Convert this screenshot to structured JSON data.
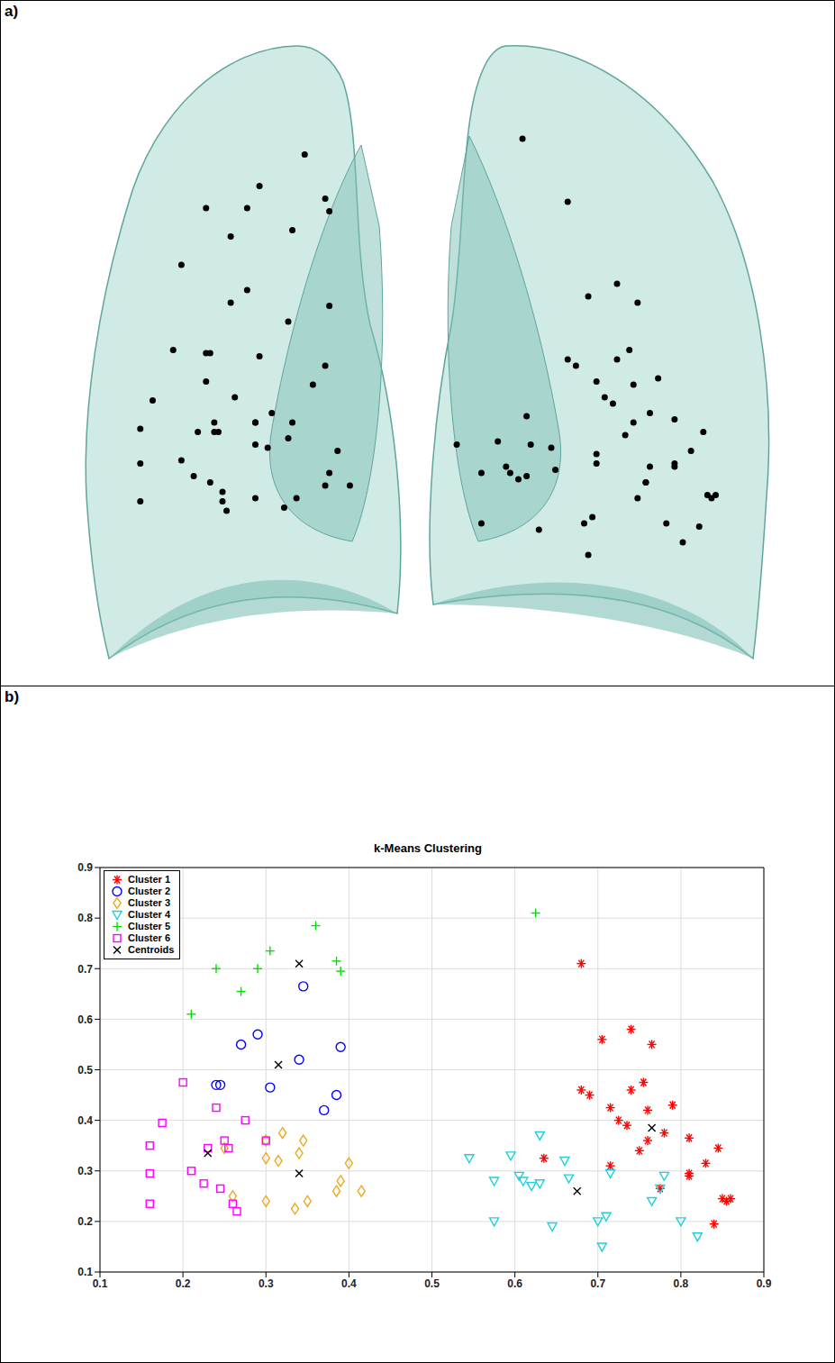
{
  "panel_labels": [
    "a)",
    "b)"
  ],
  "chart_data": {
    "type": "scatter",
    "title": "k-Means Clustering",
    "xlim": [
      0.1,
      0.9
    ],
    "ylim": [
      0.1,
      0.9
    ],
    "xticks": [
      0.1,
      0.2,
      0.3,
      0.4,
      0.5,
      0.6,
      0.7,
      0.8,
      0.9
    ],
    "yticks": [
      0.1,
      0.2,
      0.3,
      0.4,
      0.5,
      0.6,
      0.7,
      0.8,
      0.9
    ],
    "grid": true,
    "legend": "upper left",
    "series": [
      {
        "name": "Cluster 1",
        "color": "#ff0000",
        "marker": "star",
        "x": [
          0.68,
          0.68,
          0.69,
          0.705,
          0.715,
          0.715,
          0.725,
          0.735,
          0.74,
          0.74,
          0.75,
          0.755,
          0.76,
          0.76,
          0.765,
          0.78,
          0.79,
          0.775,
          0.81,
          0.81,
          0.81,
          0.83,
          0.845,
          0.84,
          0.85,
          0.855,
          0.86,
          0.635
        ],
        "values": [
          0.71,
          0.46,
          0.45,
          0.56,
          0.425,
          0.31,
          0.4,
          0.39,
          0.58,
          0.46,
          0.34,
          0.475,
          0.42,
          0.36,
          0.55,
          0.375,
          0.43,
          0.265,
          0.365,
          0.295,
          0.29,
          0.315,
          0.345,
          0.195,
          0.245,
          0.24,
          0.245,
          0.325
        ]
      },
      {
        "name": "Cluster 2",
        "color": "#0000ff",
        "marker": "circle",
        "x": [
          0.245,
          0.24,
          0.27,
          0.29,
          0.305,
          0.34,
          0.345,
          0.37,
          0.385,
          0.39
        ],
        "values": [
          0.47,
          0.47,
          0.55,
          0.57,
          0.465,
          0.52,
          0.665,
          0.42,
          0.45,
          0.545
        ]
      },
      {
        "name": "Cluster 3",
        "color": "#eda91f",
        "marker": "diamond",
        "x": [
          0.25,
          0.26,
          0.3,
          0.3,
          0.315,
          0.32,
          0.335,
          0.34,
          0.345,
          0.35,
          0.385,
          0.39,
          0.4,
          0.415,
          0.3
        ],
        "values": [
          0.345,
          0.25,
          0.325,
          0.24,
          0.32,
          0.375,
          0.225,
          0.335,
          0.36,
          0.24,
          0.26,
          0.28,
          0.315,
          0.26,
          0.36
        ]
      },
      {
        "name": "Cluster 4",
        "color": "#1fcfe0",
        "marker": "triangle-down",
        "x": [
          0.545,
          0.575,
          0.575,
          0.595,
          0.605,
          0.61,
          0.62,
          0.63,
          0.63,
          0.645,
          0.66,
          0.665,
          0.7,
          0.705,
          0.71,
          0.715,
          0.765,
          0.775,
          0.78,
          0.8,
          0.82
        ],
        "values": [
          0.325,
          0.28,
          0.2,
          0.33,
          0.29,
          0.28,
          0.27,
          0.37,
          0.275,
          0.19,
          0.32,
          0.285,
          0.2,
          0.15,
          0.21,
          0.295,
          0.24,
          0.265,
          0.29,
          0.2,
          0.17
        ]
      },
      {
        "name": "Cluster 5",
        "color": "#00e000",
        "marker": "plus",
        "x": [
          0.21,
          0.24,
          0.27,
          0.29,
          0.305,
          0.36,
          0.385,
          0.39,
          0.625
        ],
        "values": [
          0.61,
          0.7,
          0.655,
          0.7,
          0.735,
          0.785,
          0.715,
          0.695,
          0.81
        ]
      },
      {
        "name": "Cluster 6",
        "color": "#ff00ff",
        "marker": "square",
        "x": [
          0.16,
          0.16,
          0.16,
          0.175,
          0.2,
          0.21,
          0.225,
          0.23,
          0.24,
          0.245,
          0.25,
          0.255,
          0.26,
          0.265,
          0.275,
          0.3
        ],
        "values": [
          0.35,
          0.295,
          0.235,
          0.395,
          0.475,
          0.3,
          0.275,
          0.345,
          0.425,
          0.265,
          0.36,
          0.345,
          0.235,
          0.22,
          0.4,
          0.36
        ]
      },
      {
        "name": "Centroids",
        "color": "#000000",
        "marker": "x",
        "x": [
          0.765,
          0.315,
          0.34,
          0.675,
          0.34,
          0.23
        ],
        "values": [
          0.385,
          0.51,
          0.295,
          0.26,
          0.71,
          0.335
        ]
      }
    ]
  }
}
